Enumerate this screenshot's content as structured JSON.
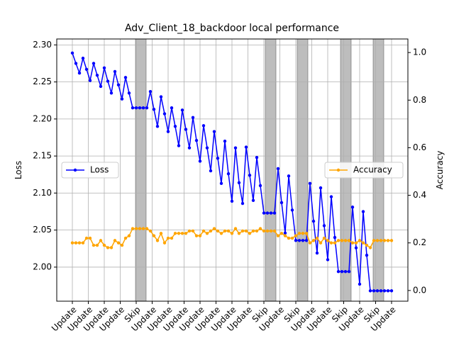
{
  "chart_data": {
    "type": "line",
    "title": "Adv_Client_18_backdoor local performance",
    "ylabel": "Loss",
    "y2label": "Accuracy",
    "x": [
      0,
      1,
      2,
      3,
      4,
      5,
      6,
      7,
      8,
      9,
      10,
      11,
      12,
      13,
      14,
      15,
      16,
      17,
      18,
      19,
      20,
      21,
      22,
      23,
      24,
      25,
      26,
      27,
      28,
      29,
      30,
      31,
      32,
      33,
      34,
      35,
      36,
      37,
      38,
      39,
      40,
      41,
      42,
      43,
      44,
      45,
      46,
      47,
      48,
      49,
      50,
      51,
      52,
      53,
      54,
      55,
      56,
      57,
      58,
      59,
      60,
      61,
      62,
      63,
      64,
      65,
      66,
      67,
      68,
      69,
      70,
      71,
      72,
      73,
      74,
      75,
      76,
      77,
      78,
      79,
      80,
      81,
      82,
      83,
      84,
      85,
      86,
      87,
      88,
      89,
      90
    ],
    "series": [
      {
        "name": "Loss",
        "color": "#0000ff",
        "axis": "y",
        "values": [
          2.289,
          2.275,
          2.262,
          2.282,
          2.267,
          2.252,
          2.275,
          2.259,
          2.244,
          2.269,
          2.251,
          2.235,
          2.264,
          2.246,
          2.227,
          2.256,
          2.235,
          2.215,
          2.215,
          2.215,
          2.215,
          2.215,
          2.237,
          2.213,
          2.19,
          2.23,
          2.207,
          2.183,
          2.215,
          2.19,
          2.164,
          2.212,
          2.186,
          2.161,
          2.202,
          2.171,
          2.143,
          2.191,
          2.161,
          2.13,
          2.183,
          2.147,
          2.113,
          2.17,
          2.126,
          2.089,
          2.161,
          2.114,
          2.086,
          2.162,
          2.124,
          2.09,
          2.148,
          2.11,
          2.073,
          2.073,
          2.073,
          2.073,
          2.133,
          2.087,
          2.046,
          2.123,
          2.077,
          2.036,
          2.036,
          2.036,
          2.036,
          2.113,
          2.062,
          2.019,
          2.107,
          2.056,
          2.01,
          2.095,
          2.04,
          1.994,
          1.994,
          1.994,
          1.994,
          2.081,
          2.026,
          1.977,
          2.075,
          2.016,
          1.968,
          1.968,
          1.968,
          1.968,
          1.968,
          1.968,
          1.968
        ]
      },
      {
        "name": "Accuracy",
        "color": "#ffa500",
        "axis": "y2",
        "values": [
          0.2,
          0.2,
          0.2,
          0.2,
          0.22,
          0.22,
          0.19,
          0.19,
          0.21,
          0.19,
          0.18,
          0.18,
          0.21,
          0.2,
          0.19,
          0.22,
          0.23,
          0.26,
          0.26,
          0.26,
          0.26,
          0.26,
          0.25,
          0.23,
          0.21,
          0.24,
          0.2,
          0.22,
          0.22,
          0.24,
          0.24,
          0.24,
          0.24,
          0.25,
          0.25,
          0.23,
          0.23,
          0.25,
          0.24,
          0.25,
          0.26,
          0.25,
          0.24,
          0.25,
          0.25,
          0.24,
          0.26,
          0.24,
          0.25,
          0.25,
          0.24,
          0.25,
          0.25,
          0.26,
          0.25,
          0.25,
          0.25,
          0.25,
          0.23,
          0.24,
          0.23,
          0.22,
          0.22,
          0.23,
          0.24,
          0.24,
          0.24,
          0.2,
          0.21,
          0.22,
          0.2,
          0.22,
          0.21,
          0.2,
          0.2,
          0.21,
          0.21,
          0.21,
          0.21,
          0.2,
          0.2,
          0.21,
          0.2,
          0.19,
          0.18,
          0.21,
          0.21,
          0.21,
          0.21,
          0.21,
          0.21
        ]
      }
    ],
    "shaded_spans": [
      [
        17.8,
        20.8
      ],
      [
        54.4,
        57.4
      ],
      [
        63.4,
        66.4
      ],
      [
        75.6,
        78.6
      ],
      [
        84.8,
        87.8
      ]
    ],
    "shade_color": "#bdbdbd",
    "xlim": [
      -4.4,
      94.6
    ],
    "xticks": [
      {
        "value": 0,
        "label": "Update"
      },
      {
        "value": 4.5,
        "label": "Update"
      },
      {
        "value": 9,
        "label": "Update"
      },
      {
        "value": 13.5,
        "label": "Update"
      },
      {
        "value": 18,
        "label": "Skip"
      },
      {
        "value": 22.5,
        "label": "Update"
      },
      {
        "value": 27,
        "label": "Update"
      },
      {
        "value": 31.5,
        "label": "Update"
      },
      {
        "value": 36,
        "label": "Update"
      },
      {
        "value": 40.5,
        "label": "Update"
      },
      {
        "value": 45,
        "label": "Update"
      },
      {
        "value": 49.5,
        "label": "Update"
      },
      {
        "value": 54,
        "label": "Skip"
      },
      {
        "value": 58.5,
        "label": "Update"
      },
      {
        "value": 63,
        "label": "Skip"
      },
      {
        "value": 67.5,
        "label": "Update"
      },
      {
        "value": 72,
        "label": "Update"
      },
      {
        "value": 76.5,
        "label": "Skip"
      },
      {
        "value": 81,
        "label": "Update"
      },
      {
        "value": 85.5,
        "label": "Skip"
      },
      {
        "value": 90,
        "label": "Update"
      }
    ],
    "ylim": [
      1.954,
      2.308
    ],
    "yticks": [
      {
        "value": 2.0,
        "label": "2.00"
      },
      {
        "value": 2.05,
        "label": "2.05"
      },
      {
        "value": 2.1,
        "label": "2.10"
      },
      {
        "value": 2.15,
        "label": "2.15"
      },
      {
        "value": 2.2,
        "label": "2.20"
      },
      {
        "value": 2.25,
        "label": "2.25"
      },
      {
        "value": 2.3,
        "label": "2.30"
      }
    ],
    "y2lim": [
      -0.045,
      1.057
    ],
    "y2ticks": [
      {
        "value": 0,
        "label": "0.0"
      },
      {
        "value": 0.2,
        "label": "0.2"
      },
      {
        "value": 0.4,
        "label": "0.4"
      },
      {
        "value": 0.6,
        "label": "0.6"
      },
      {
        "value": 0.8,
        "label": "0.8"
      },
      {
        "value": 1,
        "label": "1.0"
      }
    ],
    "grid": true,
    "legend": [
      "center left",
      "center right"
    ]
  }
}
